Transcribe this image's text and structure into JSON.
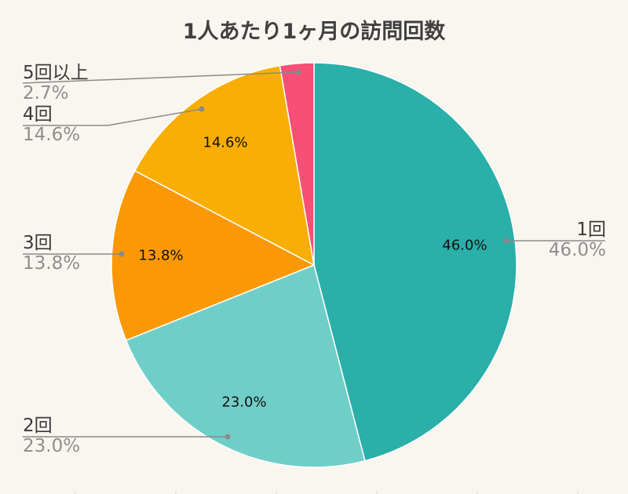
{
  "chart_data": {
    "type": "pie",
    "title": "1人あたり1ヶ月の訪問回数",
    "categories": [
      "1回",
      "2回",
      "3回",
      "4回",
      "5回以上"
    ],
    "values": [
      46.0,
      23.0,
      13.8,
      14.6,
      2.7
    ],
    "value_labels": [
      "46.0%",
      "23.0%",
      "13.8%",
      "14.6%",
      "2.7%"
    ],
    "colors": [
      "#2aafa9",
      "#70cec8",
      "#fa9905",
      "#f8ae05",
      "#f74f75"
    ],
    "start_angle": "12 o'clock",
    "direction": "clockwise",
    "legend": "none (leader-line outside labels)"
  },
  "labels": {
    "s0": {
      "name": "1回",
      "pct": "46.0%",
      "inner": "46.0%"
    },
    "s1": {
      "name": "2回",
      "pct": "23.0%",
      "inner": "23.0%"
    },
    "s2": {
      "name": "3回",
      "pct": "13.8%",
      "inner": "13.8%"
    },
    "s3": {
      "name": "4回",
      "pct": "14.6%",
      "inner": "14.6%"
    },
    "s4": {
      "name": "5回以上",
      "pct": "2.7%"
    }
  },
  "colors": {
    "background": "#f9f6f0",
    "leader_line": "#8a8a8a"
  }
}
